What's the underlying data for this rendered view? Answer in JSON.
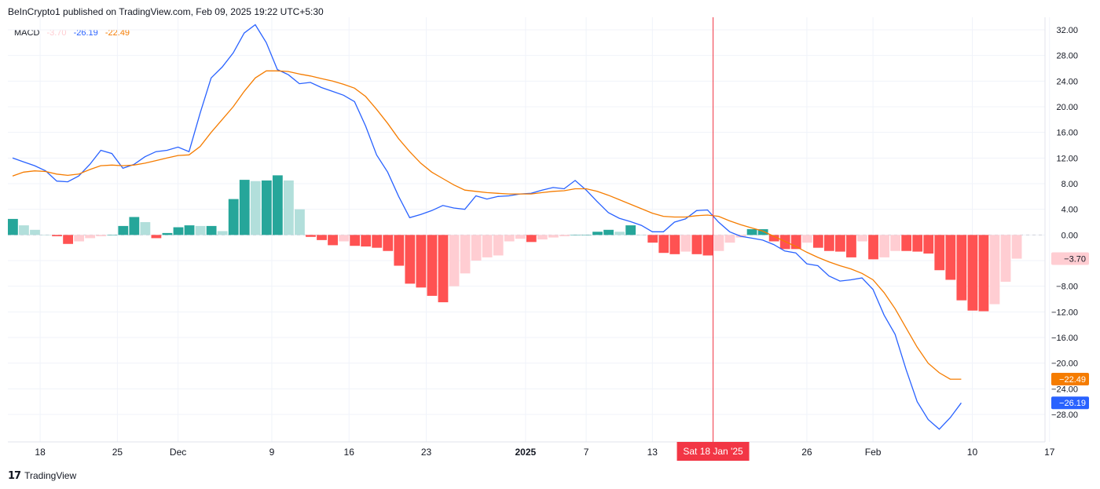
{
  "header": {
    "published": "BeInCrypto1 published on TradingView.com, Feb 09, 2025 19:22 UTC+5:30"
  },
  "legend": {
    "name": "MACD",
    "histogram": "-3.70",
    "macd": "-26.19",
    "signal": "-22.49"
  },
  "footer": {
    "brand": "TradingView",
    "logo": "tradingview-logo"
  },
  "colors": {
    "macd": "#2962ff",
    "signal": "#f57c00",
    "hist_pos_strong": "#26a69a",
    "hist_pos_weak": "#b2dfdb",
    "hist_neg_strong": "#ff5252",
    "hist_neg_weak": "#ffcdd2",
    "crosshair": "#f23645",
    "grid": "#f0f3fa"
  },
  "chart_data": {
    "type": "line",
    "title": "MACD",
    "ylim": [
      -30,
      33
    ],
    "y_ticks": [
      32,
      28,
      24,
      20,
      16,
      12,
      8,
      4,
      0,
      -4,
      -8,
      -12,
      -16,
      -20,
      -24,
      -28
    ],
    "y_tick_labels": [
      "32.00",
      "28.00",
      "24.00",
      "20.00",
      "16.00",
      "12.00",
      "8.00",
      "4.00",
      "0.00",
      "−4.00",
      "−8.00",
      "−12.00",
      "−16.00",
      "−20.00",
      "−24.00",
      "−28.00"
    ],
    "x_tick_labels": [
      {
        "i": 5,
        "label": "18"
      },
      {
        "i": 19,
        "label": "25"
      },
      {
        "i": 30,
        "label": "Dec"
      },
      {
        "i": 47,
        "label": "9"
      },
      {
        "i": 61,
        "label": "16"
      },
      {
        "i": 75,
        "label": "23"
      },
      {
        "i": 93,
        "label": "2025",
        "bold": true
      },
      {
        "i": 104,
        "label": "7"
      },
      {
        "i": 116,
        "label": "13"
      },
      {
        "i": 144,
        "label": "26"
      },
      {
        "i": 156,
        "label": "Feb"
      },
      {
        "i": 174,
        "label": "10"
      },
      {
        "i": 188,
        "label": "17"
      }
    ],
    "crosshair": {
      "i": 127,
      "label": "Sat 18 Jan '25"
    },
    "value_labels": [
      {
        "series": "histogram",
        "value": -3.7,
        "text": "−3.70"
      },
      {
        "series": "signal",
        "value": -22.49,
        "text": "−22.49"
      },
      {
        "series": "macd",
        "value": -26.19,
        "text": "−26.19"
      }
    ],
    "series": [
      {
        "name": "MACD",
        "points": [
          [
            0,
            12
          ],
          [
            2,
            11.4
          ],
          [
            4,
            10.8
          ],
          [
            6,
            10
          ],
          [
            8,
            8.4
          ],
          [
            10,
            8.3
          ],
          [
            12,
            9.2
          ],
          [
            14,
            11
          ],
          [
            16,
            13.2
          ],
          [
            18,
            12.7
          ],
          [
            20,
            10.4
          ],
          [
            22,
            11
          ],
          [
            24,
            12.2
          ],
          [
            26,
            13
          ],
          [
            28,
            13.2
          ],
          [
            30,
            13.7
          ],
          [
            32,
            13
          ],
          [
            34,
            19
          ],
          [
            36,
            24.5
          ],
          [
            38,
            26.2
          ],
          [
            40,
            28.4
          ],
          [
            42,
            31.5
          ],
          [
            44,
            32.8
          ],
          [
            46,
            30
          ],
          [
            48,
            25.8
          ],
          [
            50,
            25
          ],
          [
            52,
            23.6
          ],
          [
            54,
            23.8
          ],
          [
            56,
            23
          ],
          [
            58,
            22.4
          ],
          [
            60,
            21.8
          ],
          [
            62,
            20.8
          ],
          [
            64,
            17
          ],
          [
            66,
            12.5
          ],
          [
            68,
            9.8
          ],
          [
            70,
            6
          ],
          [
            72,
            2.7
          ],
          [
            74,
            3.2
          ],
          [
            76,
            3.8
          ],
          [
            78,
            4.6
          ],
          [
            80,
            4.2
          ],
          [
            82,
            4.0
          ],
          [
            84,
            6.1
          ],
          [
            86,
            5.6
          ],
          [
            88,
            6
          ],
          [
            90,
            6.1
          ],
          [
            92,
            6.4
          ],
          [
            94,
            6.5
          ],
          [
            96,
            7
          ],
          [
            98,
            7.4
          ],
          [
            100,
            7.2
          ],
          [
            102,
            8.5
          ],
          [
            104,
            7
          ],
          [
            106,
            5.2
          ],
          [
            108,
            3.5
          ],
          [
            110,
            2.6
          ],
          [
            112,
            2.1
          ],
          [
            114,
            1.5
          ],
          [
            116,
            0.5
          ],
          [
            118,
            0.5
          ],
          [
            120,
            2
          ],
          [
            122,
            2.5
          ],
          [
            124,
            3.8
          ],
          [
            126,
            3.9
          ],
          [
            128,
            2
          ],
          [
            130,
            0.5
          ],
          [
            132,
            -0.2
          ],
          [
            134,
            -0.5
          ],
          [
            136,
            -0.8
          ],
          [
            138,
            -1.5
          ],
          [
            140,
            -2.5
          ],
          [
            142,
            -2.8
          ],
          [
            144,
            -4.5
          ],
          [
            146,
            -4.8
          ],
          [
            148,
            -6.4
          ],
          [
            150,
            -7.2
          ],
          [
            152,
            -7
          ],
          [
            154,
            -6.7
          ],
          [
            156,
            -8.5
          ],
          [
            158,
            -12.5
          ],
          [
            160,
            -15.5
          ],
          [
            162,
            -21
          ],
          [
            164,
            -26
          ],
          [
            166,
            -28.8
          ],
          [
            168,
            -30.3
          ],
          [
            170,
            -28.5
          ],
          [
            172,
            -26.2
          ]
        ]
      },
      {
        "name": "Signal",
        "points": [
          [
            0,
            9.2
          ],
          [
            2,
            9.8
          ],
          [
            4,
            10
          ],
          [
            6,
            9.9
          ],
          [
            8,
            9.5
          ],
          [
            10,
            9.3
          ],
          [
            12,
            9.5
          ],
          [
            14,
            10.2
          ],
          [
            16,
            10.8
          ],
          [
            18,
            10.9
          ],
          [
            20,
            10.8
          ],
          [
            22,
            10.9
          ],
          [
            24,
            11.2
          ],
          [
            26,
            11.6
          ],
          [
            28,
            12
          ],
          [
            30,
            12.4
          ],
          [
            32,
            12.5
          ],
          [
            34,
            13.8
          ],
          [
            36,
            16
          ],
          [
            38,
            18
          ],
          [
            40,
            20
          ],
          [
            42,
            22.4
          ],
          [
            44,
            24.5
          ],
          [
            46,
            25.6
          ],
          [
            48,
            25.6
          ],
          [
            50,
            25.5
          ],
          [
            52,
            25.1
          ],
          [
            54,
            24.8
          ],
          [
            56,
            24.4
          ],
          [
            58,
            24
          ],
          [
            60,
            23.5
          ],
          [
            62,
            22.9
          ],
          [
            64,
            21.6
          ],
          [
            66,
            19.6
          ],
          [
            68,
            17.4
          ],
          [
            70,
            15
          ],
          [
            72,
            13
          ],
          [
            74,
            11.2
          ],
          [
            76,
            9.8
          ],
          [
            78,
            8.8
          ],
          [
            80,
            7.8
          ],
          [
            82,
            7
          ],
          [
            84,
            6.8
          ],
          [
            86,
            6.6
          ],
          [
            88,
            6.5
          ],
          [
            90,
            6.4
          ],
          [
            92,
            6.4
          ],
          [
            94,
            6.4
          ],
          [
            96,
            6.6
          ],
          [
            98,
            6.8
          ],
          [
            100,
            6.9
          ],
          [
            102,
            7.2
          ],
          [
            104,
            7.2
          ],
          [
            106,
            6.8
          ],
          [
            108,
            6.2
          ],
          [
            110,
            5.5
          ],
          [
            112,
            4.8
          ],
          [
            114,
            4.1
          ],
          [
            116,
            3.4
          ],
          [
            118,
            2.9
          ],
          [
            120,
            2.8
          ],
          [
            122,
            2.8
          ],
          [
            124,
            3
          ],
          [
            126,
            3.1
          ],
          [
            128,
            2.9
          ],
          [
            130,
            2.2
          ],
          [
            132,
            1.6
          ],
          [
            134,
            1.1
          ],
          [
            136,
            0.6
          ],
          [
            138,
            -0.2
          ],
          [
            140,
            -1
          ],
          [
            142,
            -1.8
          ],
          [
            144,
            -2.7
          ],
          [
            146,
            -3.5
          ],
          [
            148,
            -4.2
          ],
          [
            150,
            -4.8
          ],
          [
            152,
            -5.3
          ],
          [
            154,
            -6
          ],
          [
            156,
            -7
          ],
          [
            158,
            -9
          ],
          [
            160,
            -11.5
          ],
          [
            162,
            -14.5
          ],
          [
            164,
            -17.5
          ],
          [
            166,
            -20
          ],
          [
            168,
            -21.5
          ],
          [
            170,
            -22.5
          ],
          [
            172,
            -22.5
          ]
        ]
      },
      {
        "name": "Histogram",
        "type": "bar",
        "start_index": 0,
        "values": [
          2.5,
          1.5,
          0.8,
          0,
          -0.2,
          -1.4,
          -1,
          -0.5,
          -0.2,
          0,
          1.4,
          2.8,
          2,
          -0.5,
          0.3,
          1.2,
          1.5,
          1.4,
          1.4,
          0.6,
          5.6,
          8.6,
          8.4,
          8.5,
          9.3,
          8.5,
          4,
          -0.3,
          -0.8,
          -1.6,
          -1,
          -1.7,
          -1.8,
          -2,
          -2.5,
          -4.8,
          -7.6,
          -8.2,
          -9.5,
          -10.5,
          -8,
          -6,
          -4,
          -3.5,
          -3.2,
          -1,
          -0.6,
          -1.1,
          -0.7,
          -0.4,
          -0.2,
          0,
          0,
          0.5,
          0.8,
          0.5,
          1.5,
          0,
          -1.2,
          -2.8,
          -3,
          -2.6,
          -3,
          -3.2,
          -2.5,
          -1.2,
          -0.4,
          0.9,
          0.9,
          -1,
          -2.2,
          -2.2,
          -1.2,
          -2,
          -2.5,
          -2.6,
          -3.5,
          -1,
          -3.8,
          -3.5,
          -2.5,
          -2.5,
          -2.6,
          -2.9,
          -5.5,
          -7,
          -10.2,
          -11.8,
          -11.9,
          -10.8,
          -7.3,
          -3.7
        ]
      }
    ]
  }
}
